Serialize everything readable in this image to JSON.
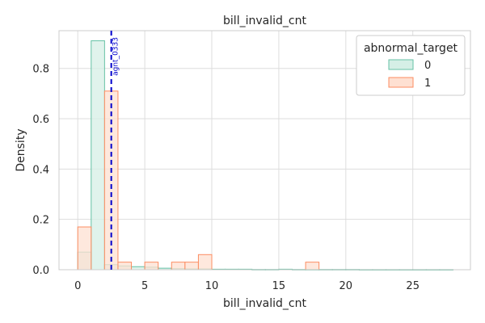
{
  "chart_data": {
    "type": "histogram",
    "title": "bill_invalid_cnt",
    "xlabel": "bill_invalid_cnt",
    "ylabel": "Density",
    "xlim": [
      -1.4,
      29.3
    ],
    "ylim": [
      0,
      0.95
    ],
    "xticks": [
      0,
      5,
      10,
      15,
      20,
      25
    ],
    "yticks": [
      0.0,
      0.2,
      0.4,
      0.6,
      0.8
    ],
    "grid": true,
    "legend": {
      "title": "abnormal_target",
      "position": "top-right"
    },
    "series": [
      {
        "name": "0",
        "stroke": "#66c2a5",
        "fill": "#d5efe6",
        "bins": [
          [
            0,
            1,
            0.07
          ],
          [
            1,
            2,
            0.91
          ],
          [
            2,
            3,
            0.02
          ],
          [
            3,
            4,
            0.015
          ],
          [
            4,
            5,
            0.012
          ],
          [
            5,
            6,
            0.01
          ],
          [
            6,
            7,
            0.006
          ],
          [
            7,
            8,
            0.004
          ],
          [
            8,
            9,
            0.003
          ],
          [
            9,
            10,
            0.003
          ],
          [
            10,
            11,
            0.002
          ],
          [
            11,
            12,
            0.002
          ],
          [
            12,
            13,
            0.002
          ],
          [
            13,
            14,
            0.001
          ],
          [
            14,
            15,
            0.001
          ],
          [
            15,
            16,
            0.002
          ],
          [
            16,
            17,
            0.001
          ],
          [
            17,
            18,
            0.001
          ],
          [
            18,
            19,
            0.001
          ],
          [
            19,
            20,
            0.001
          ],
          [
            20,
            21,
            0.001
          ],
          [
            21,
            22,
            0.0005
          ],
          [
            22,
            23,
            0.0005
          ],
          [
            23,
            24,
            0.0005
          ],
          [
            24,
            25,
            0.0005
          ],
          [
            25,
            26,
            0.0005
          ],
          [
            26,
            27,
            0.0005
          ],
          [
            27,
            28,
            0.0005
          ]
        ]
      },
      {
        "name": "1",
        "stroke": "#fc8d62",
        "fill": "#fee0d2",
        "bins": [
          [
            0,
            1,
            0.17
          ],
          [
            1,
            2,
            0.0
          ],
          [
            2,
            3,
            0.71
          ],
          [
            3,
            4,
            0.03
          ],
          [
            4,
            5,
            0.0
          ],
          [
            5,
            6,
            0.03
          ],
          [
            6,
            7,
            0.0
          ],
          [
            7,
            8,
            0.03
          ],
          [
            8,
            9,
            0.03
          ],
          [
            9,
            10,
            0.06
          ],
          [
            10,
            11,
            0.0
          ],
          [
            11,
            12,
            0.0
          ],
          [
            12,
            13,
            0.0
          ],
          [
            13,
            14,
            0.0
          ],
          [
            14,
            15,
            0.0
          ],
          [
            15,
            16,
            0.0
          ],
          [
            16,
            17,
            0.0
          ],
          [
            17,
            18,
            0.03
          ]
        ]
      }
    ],
    "vline": {
      "x": 2.5,
      "label": "agnt_0333",
      "color": "#0000cc"
    }
  }
}
